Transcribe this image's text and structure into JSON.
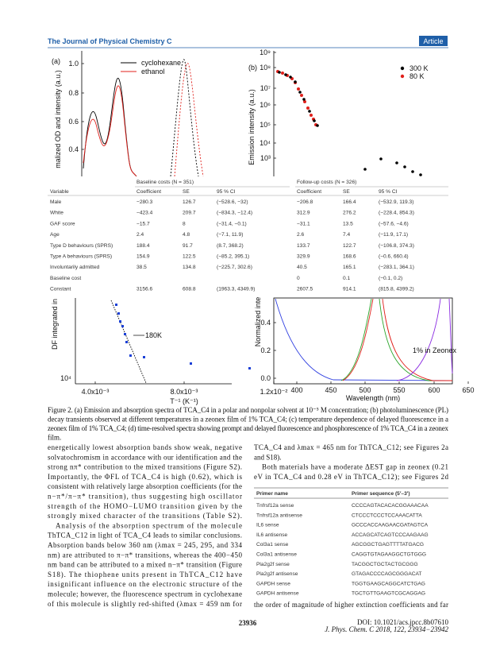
{
  "header": {
    "journal": "The Journal of Physical Chemistry C",
    "section": "Article"
  },
  "figure": {
    "panel_a": {
      "label": "(a)",
      "y_axis_label": "malized OD and intensity (a.u.)",
      "yticks": [
        "1.0",
        "0.8",
        "0.6",
        "0.4"
      ],
      "legend": [
        {
          "name": "cyclohexane",
          "color": "#000000"
        },
        {
          "name": "ethanol",
          "color": "#e0201b"
        }
      ]
    },
    "panel_b": {
      "label": "(b)",
      "y_axis_label": "Emission intensity (a.u.)",
      "yticks": [
        "10⁹",
        "10⁸",
        "10⁷",
        "10⁶",
        "10⁵",
        "10⁴",
        "10³"
      ],
      "legend": [
        {
          "name": "300 K",
          "color": "#000000"
        },
        {
          "name": "80 K",
          "color": "#e0201b"
        }
      ]
    },
    "panel_c": {
      "y_axis_label": "DF integrated in",
      "ytick": "10⁴",
      "annotation": "180K",
      "xticks": [
        "4.0x10⁻³",
        "8.0x10⁻³",
        "1.2x10⁻²"
      ],
      "x_axis_label": "T⁻¹ (K⁻¹)"
    },
    "panel_d": {
      "y_axis_label": "Normalized inte",
      "yticks": [
        "0.4",
        "0.2",
        "0.0"
      ],
      "annotation": "1% in Zeonex",
      "xticks": [
        "400",
        "450",
        "500",
        "550",
        "600",
        "650"
      ],
      "x_axis_label": "Wavelength (nm)"
    },
    "caption": [
      "Figure 2. (a) Emission and absorption spectra of TCA_C4 in a polar and nonpolar solvent at 10⁻⁵ M concentration; (b) photoluminescence (PL)",
      "decay transients observed at different temperatures in a zeonex film of 1% TCA_C4; (c) temperature dependence of delayed fluorescence in a",
      "zeonex film of 1% TCA_C4; (d) time-resolved spectra showing prompt and delayed fluorescence and phosphorescence of 1% TCA_C4 in a zeonex",
      "film."
    ]
  },
  "cost_table": {
    "groups": [
      "Baseline costs (N = 351)",
      "Follow-up costs (N = 326)"
    ],
    "columns": [
      "Variable",
      "Coefficient",
      "SE",
      "95 % CI",
      "Coefficient",
      "SE",
      "95 % CI"
    ],
    "rows": [
      [
        "Male",
        "−280.3",
        "126.7",
        "(−528.6, −32)",
        "−206.8",
        "166.4",
        "(−532.9, 119.3)"
      ],
      [
        "White",
        "−423.4",
        "209.7",
        "(−834.3, −12.4)",
        "312.9",
        "276.2",
        "(−228.4, 854.3)"
      ],
      [
        "GAF score",
        "−15.7",
        "8",
        "(−31.4, −0.1)",
        "−31.1",
        "13.5",
        "(−57.6, −4.6)"
      ],
      [
        "Age",
        "2.4",
        "4.8",
        "(−7.1, 11.9)",
        "2.6",
        "7.4",
        "(−11.9, 17.1)"
      ],
      [
        "Type D behaviours (SPRS)",
        "188.4",
        "91.7",
        "(8.7, 368.2)",
        "133.7",
        "122.7",
        "(−106.8, 374.3)"
      ],
      [
        "Type A behaviours (SPRS)",
        "154.9",
        "122.5",
        "(−85.2, 395.1)",
        "329.9",
        "168.6",
        "(−0.6, 660.4)"
      ],
      [
        "Involuntarily admitted",
        "38.5",
        "134.8",
        "(−225.7, 302.6)",
        "40.5",
        "165.1",
        "(−283.1, 364.1)"
      ],
      [
        "Baseline cost",
        null,
        null,
        null,
        "0",
        "0.1",
        "(−0.1, 0.2)"
      ],
      [
        "Constant",
        "3156.6",
        "608.8",
        "(1963.3, 4349.9)",
        "2607.5",
        "914.1",
        "(815.8, 4399.2)"
      ]
    ]
  },
  "left_column": [
    "energetically lowest absorption bands show weak, negative",
    "solvatochromism in accordance with our identification and the",
    "strong nπ* contribution to the mixed transitions (Figure S2).",
    "Importantly, the ΦFL of TCA_C4 is high (0.62), which is",
    "consistent with relatively large absorption coefficients (for the",
    "n−π*/π−π* transition), thus suggesting high oscillator",
    "strength of the HOMO−LUMO transition given by the",
    "strongly mixed character of the transitions (Table S2).",
    "Analysis of the absorption spectrum of the molecule",
    "ThTCA_C12 in light of TCA_C4 leads to similar conclusions.",
    "Absorption bands below 360 nm (λmax = 245, 295, and 334",
    "nm) are attributed to π−π* transitions, whereas the 400−450",
    "nm band can be attributed to a mixed n−π* transition (Figure",
    "S18). The thiophene units present in ThTCA_C12 have",
    "insignificant influence on the electronic structure of the",
    "molecule; however, the fluorescence spectrum in cyclohexane",
    "of this molecule is slightly red-shifted (λmax = 459 nm for"
  ],
  "right_column": {
    "before": [
      "TCA_C4 and λmax = 465 nm for ThTCA_C12; see Figures 2a",
      "and S18).",
      "Both materials have a moderate ΔEST gap in zeonex (0.21",
      "eV in TCA_C4 and 0.28 eV in ThTCA_C12); see Figures 2d"
    ],
    "after": [
      "the order of magnitude of higher extinction coefficients and far"
    ]
  },
  "primer_table": {
    "columns": [
      "Primer name",
      "Primer sequence (5′–3′)"
    ],
    "rows": [
      [
        "Tnfrsf12a sense",
        "CCCCAGTACACACGGAAACAA"
      ],
      [
        "Tnfrsf12a antisense",
        "CTCCCTCCCTCCAAACATTA"
      ],
      [
        "IL6 sense",
        "GCCCACCAAGAACGATAGTCA"
      ],
      [
        "IL6 antisense",
        "ACCAGCATCAGTCCCAAGAAG"
      ],
      [
        "Col3a1 sense",
        "AGCGGCTGAGTTTTATGACG"
      ],
      [
        "Col3a1 antisense",
        "CAGGTGTAGAAGGCTGTGGG"
      ],
      [
        "Pla2g2f sense",
        "TACGGCTGCTACTGCGGG"
      ],
      [
        "Pla2g2f antisense",
        "GTAGACCCCAGCGGGACAT"
      ],
      [
        "GAPDH sense",
        "TGGTGAAGCAGGCATCTGAG"
      ],
      [
        "GAPDH antisense",
        "TGCTGTTGAAGTCGCAGGAG"
      ]
    ]
  },
  "footer": {
    "page": "23936",
    "doi": "DOI: 10.1021/acs.jpcc.8b07610",
    "citation": "J. Phys. Chem. C 2018, 122, 23934−23942"
  }
}
